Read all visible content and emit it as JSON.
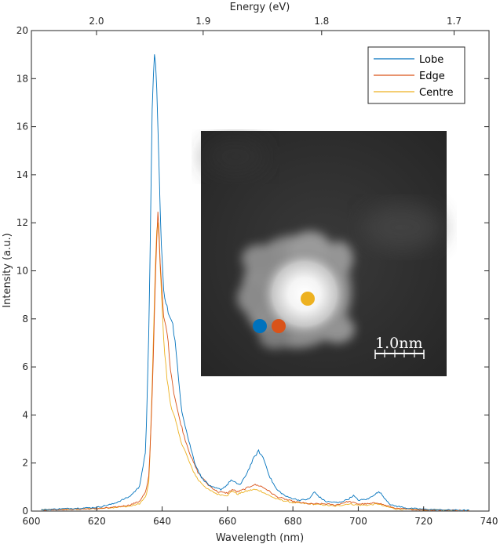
{
  "chart_data": {
    "type": "line",
    "xlabel": "Wavelength (nm)",
    "ylabel": "Intensity (a.u.)",
    "x2label": "Energy (eV)",
    "xlim": [
      600,
      740
    ],
    "ylim": [
      0,
      20
    ],
    "x_ticks": [
      600,
      620,
      640,
      660,
      680,
      700,
      720,
      740
    ],
    "y_ticks": [
      0,
      2,
      4,
      6,
      8,
      10,
      12,
      14,
      16,
      18,
      20
    ],
    "x2_ticks": [
      {
        "label": "2.0",
        "energy_eV": 2.0
      },
      {
        "label": "1.9",
        "energy_eV": 1.9
      },
      {
        "label": "1.8",
        "energy_eV": 1.8
      },
      {
        "label": "1.7",
        "energy_eV": 1.7
      }
    ],
    "grid": false,
    "legend_position": "top-right",
    "series": [
      {
        "name": "Lobe",
        "color": "#0072BD",
        "points": [
          [
            603,
            0.05
          ],
          [
            610,
            0.1
          ],
          [
            620,
            0.15
          ],
          [
            625,
            0.3
          ],
          [
            630,
            0.6
          ],
          [
            633,
            1.0
          ],
          [
            635,
            2.5
          ],
          [
            636,
            8
          ],
          [
            637,
            17
          ],
          [
            637.8,
            19.4
          ],
          [
            638.5,
            17
          ],
          [
            639.5,
            12
          ],
          [
            640.5,
            9
          ],
          [
            642,
            8.2
          ],
          [
            643,
            8.0
          ],
          [
            644,
            7.0
          ],
          [
            645,
            5.5
          ],
          [
            646,
            4.2
          ],
          [
            648,
            3.0
          ],
          [
            650,
            2.0
          ],
          [
            652,
            1.4
          ],
          [
            655,
            1.0
          ],
          [
            658,
            0.9
          ],
          [
            660,
            1.1
          ],
          [
            661,
            1.3
          ],
          [
            662,
            1.2
          ],
          [
            664,
            1.1
          ],
          [
            666,
            1.6
          ],
          [
            668,
            2.2
          ],
          [
            669.5,
            2.5
          ],
          [
            671,
            2.2
          ],
          [
            673,
            1.4
          ],
          [
            675,
            0.9
          ],
          [
            678,
            0.6
          ],
          [
            682,
            0.45
          ],
          [
            685,
            0.5
          ],
          [
            686.5,
            0.8
          ],
          [
            688,
            0.6
          ],
          [
            690,
            0.4
          ],
          [
            694,
            0.35
          ],
          [
            697,
            0.5
          ],
          [
            698.5,
            0.65
          ],
          [
            700,
            0.45
          ],
          [
            703,
            0.5
          ],
          [
            705,
            0.7
          ],
          [
            706.5,
            0.8
          ],
          [
            708,
            0.55
          ],
          [
            710,
            0.25
          ],
          [
            715,
            0.12
          ],
          [
            720,
            0.08
          ],
          [
            725,
            0.05
          ],
          [
            734,
            0.03
          ]
        ]
      },
      {
        "name": "Edge",
        "color": "#D95319",
        "points": [
          [
            603,
            0.05
          ],
          [
            610,
            0.07
          ],
          [
            620,
            0.1
          ],
          [
            625,
            0.15
          ],
          [
            630,
            0.25
          ],
          [
            633,
            0.4
          ],
          [
            635,
            0.8
          ],
          [
            636,
            1.5
          ],
          [
            637,
            5
          ],
          [
            638,
            10
          ],
          [
            638.7,
            12.6
          ],
          [
            639.5,
            10
          ],
          [
            640.5,
            8.0
          ],
          [
            641.5,
            7.5
          ],
          [
            642.5,
            6.0
          ],
          [
            643.5,
            5.0
          ],
          [
            645,
            4.0
          ],
          [
            647,
            3.0
          ],
          [
            649,
            2.2
          ],
          [
            651,
            1.6
          ],
          [
            654,
            1.1
          ],
          [
            657,
            0.8
          ],
          [
            660,
            0.75
          ],
          [
            661.5,
            0.9
          ],
          [
            663,
            0.8
          ],
          [
            665,
            0.9
          ],
          [
            668,
            1.1
          ],
          [
            670,
            1.05
          ],
          [
            672,
            0.9
          ],
          [
            675,
            0.6
          ],
          [
            680,
            0.4
          ],
          [
            685,
            0.3
          ],
          [
            690,
            0.3
          ],
          [
            693,
            0.25
          ],
          [
            697,
            0.4
          ],
          [
            700,
            0.3
          ],
          [
            703,
            0.3
          ],
          [
            706,
            0.35
          ],
          [
            708,
            0.25
          ],
          [
            712,
            0.1
          ],
          [
            720,
            0.05
          ],
          [
            734,
            0.03
          ]
        ]
      },
      {
        "name": "Centre",
        "color": "#EDB120",
        "points": [
          [
            603,
            0.05
          ],
          [
            610,
            0.07
          ],
          [
            620,
            0.1
          ],
          [
            625,
            0.15
          ],
          [
            630,
            0.2
          ],
          [
            633,
            0.3
          ],
          [
            635,
            0.6
          ],
          [
            636,
            1.2
          ],
          [
            637,
            5.5
          ],
          [
            638,
            10.5
          ],
          [
            638.6,
            12.4
          ],
          [
            639.5,
            10
          ],
          [
            640.5,
            7.0
          ],
          [
            641.5,
            5.5
          ],
          [
            642.5,
            4.5
          ],
          [
            644,
            3.8
          ],
          [
            645.5,
            3.0
          ],
          [
            647,
            2.5
          ],
          [
            649,
            1.8
          ],
          [
            651,
            1.3
          ],
          [
            654,
            0.9
          ],
          [
            657,
            0.7
          ],
          [
            660,
            0.65
          ],
          [
            661.5,
            0.85
          ],
          [
            663,
            0.7
          ],
          [
            665,
            0.8
          ],
          [
            668,
            0.9
          ],
          [
            670,
            0.85
          ],
          [
            672,
            0.7
          ],
          [
            675,
            0.5
          ],
          [
            680,
            0.35
          ],
          [
            685,
            0.3
          ],
          [
            690,
            0.25
          ],
          [
            693,
            0.2
          ],
          [
            697,
            0.3
          ],
          [
            700,
            0.25
          ],
          [
            703,
            0.25
          ],
          [
            706,
            0.3
          ],
          [
            708,
            0.2
          ],
          [
            712,
            0.08
          ],
          [
            720,
            0.05
          ],
          [
            734,
            0.03
          ]
        ]
      }
    ],
    "inset": {
      "scale_bar_label": "1.0nm",
      "markers": [
        {
          "series": "Lobe",
          "color": "#0072BD"
        },
        {
          "series": "Edge",
          "color": "#D95319"
        },
        {
          "series": "Centre",
          "color": "#EDB120"
        }
      ]
    }
  }
}
